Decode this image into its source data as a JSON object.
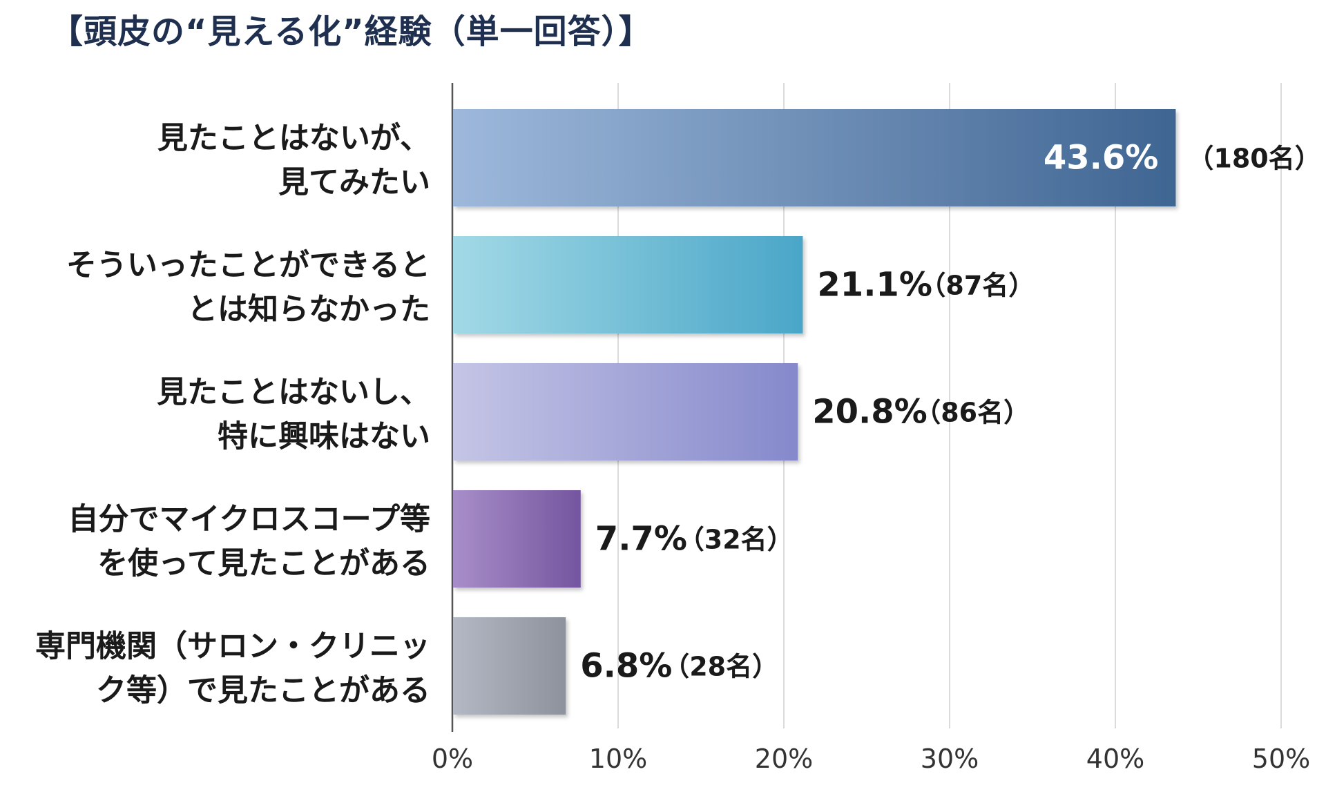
{
  "chart_data": {
    "type": "bar",
    "orientation": "horizontal",
    "title": "【頭皮の“見える化”経験（単一回答）】",
    "xlabel": "",
    "ylabel": "",
    "xlim": [
      0,
      50
    ],
    "x_ticks": [
      0,
      10,
      20,
      30,
      40,
      50
    ],
    "x_tick_labels": [
      "0%",
      "10%",
      "20%",
      "30%",
      "40%",
      "50%"
    ],
    "grid": true,
    "categories": [
      [
        "見たことはないが、",
        "見てみたい"
      ],
      [
        "そういったことができると",
        "とは知らなかった"
      ],
      [
        "見たことはないし、",
        "特に興味はない"
      ],
      [
        "自分でマイクロスコープ等",
        "を使って見たことがある"
      ],
      [
        "専門機関（サロン・クリニッ",
        "ク等）で見たことがある"
      ]
    ],
    "values": [
      43.6,
      21.1,
      20.8,
      7.7,
      6.8
    ],
    "value_labels": [
      "43.6%",
      "21.1%",
      "20.8%",
      "7.7%",
      "6.8%"
    ],
    "count_labels": [
      "（180名）",
      "（87名）",
      "（86名）",
      "（32名）",
      "（28名）"
    ],
    "colors": [
      [
        "#9db8db",
        "#3f6592"
      ],
      [
        "#a2d9e6",
        "#4aa6c8"
      ],
      [
        "#c5c5e6",
        "#8589cb"
      ],
      [
        "#a88ec9",
        "#74559f"
      ],
      [
        "#b4b8c4",
        "#8d929c"
      ]
    ]
  }
}
